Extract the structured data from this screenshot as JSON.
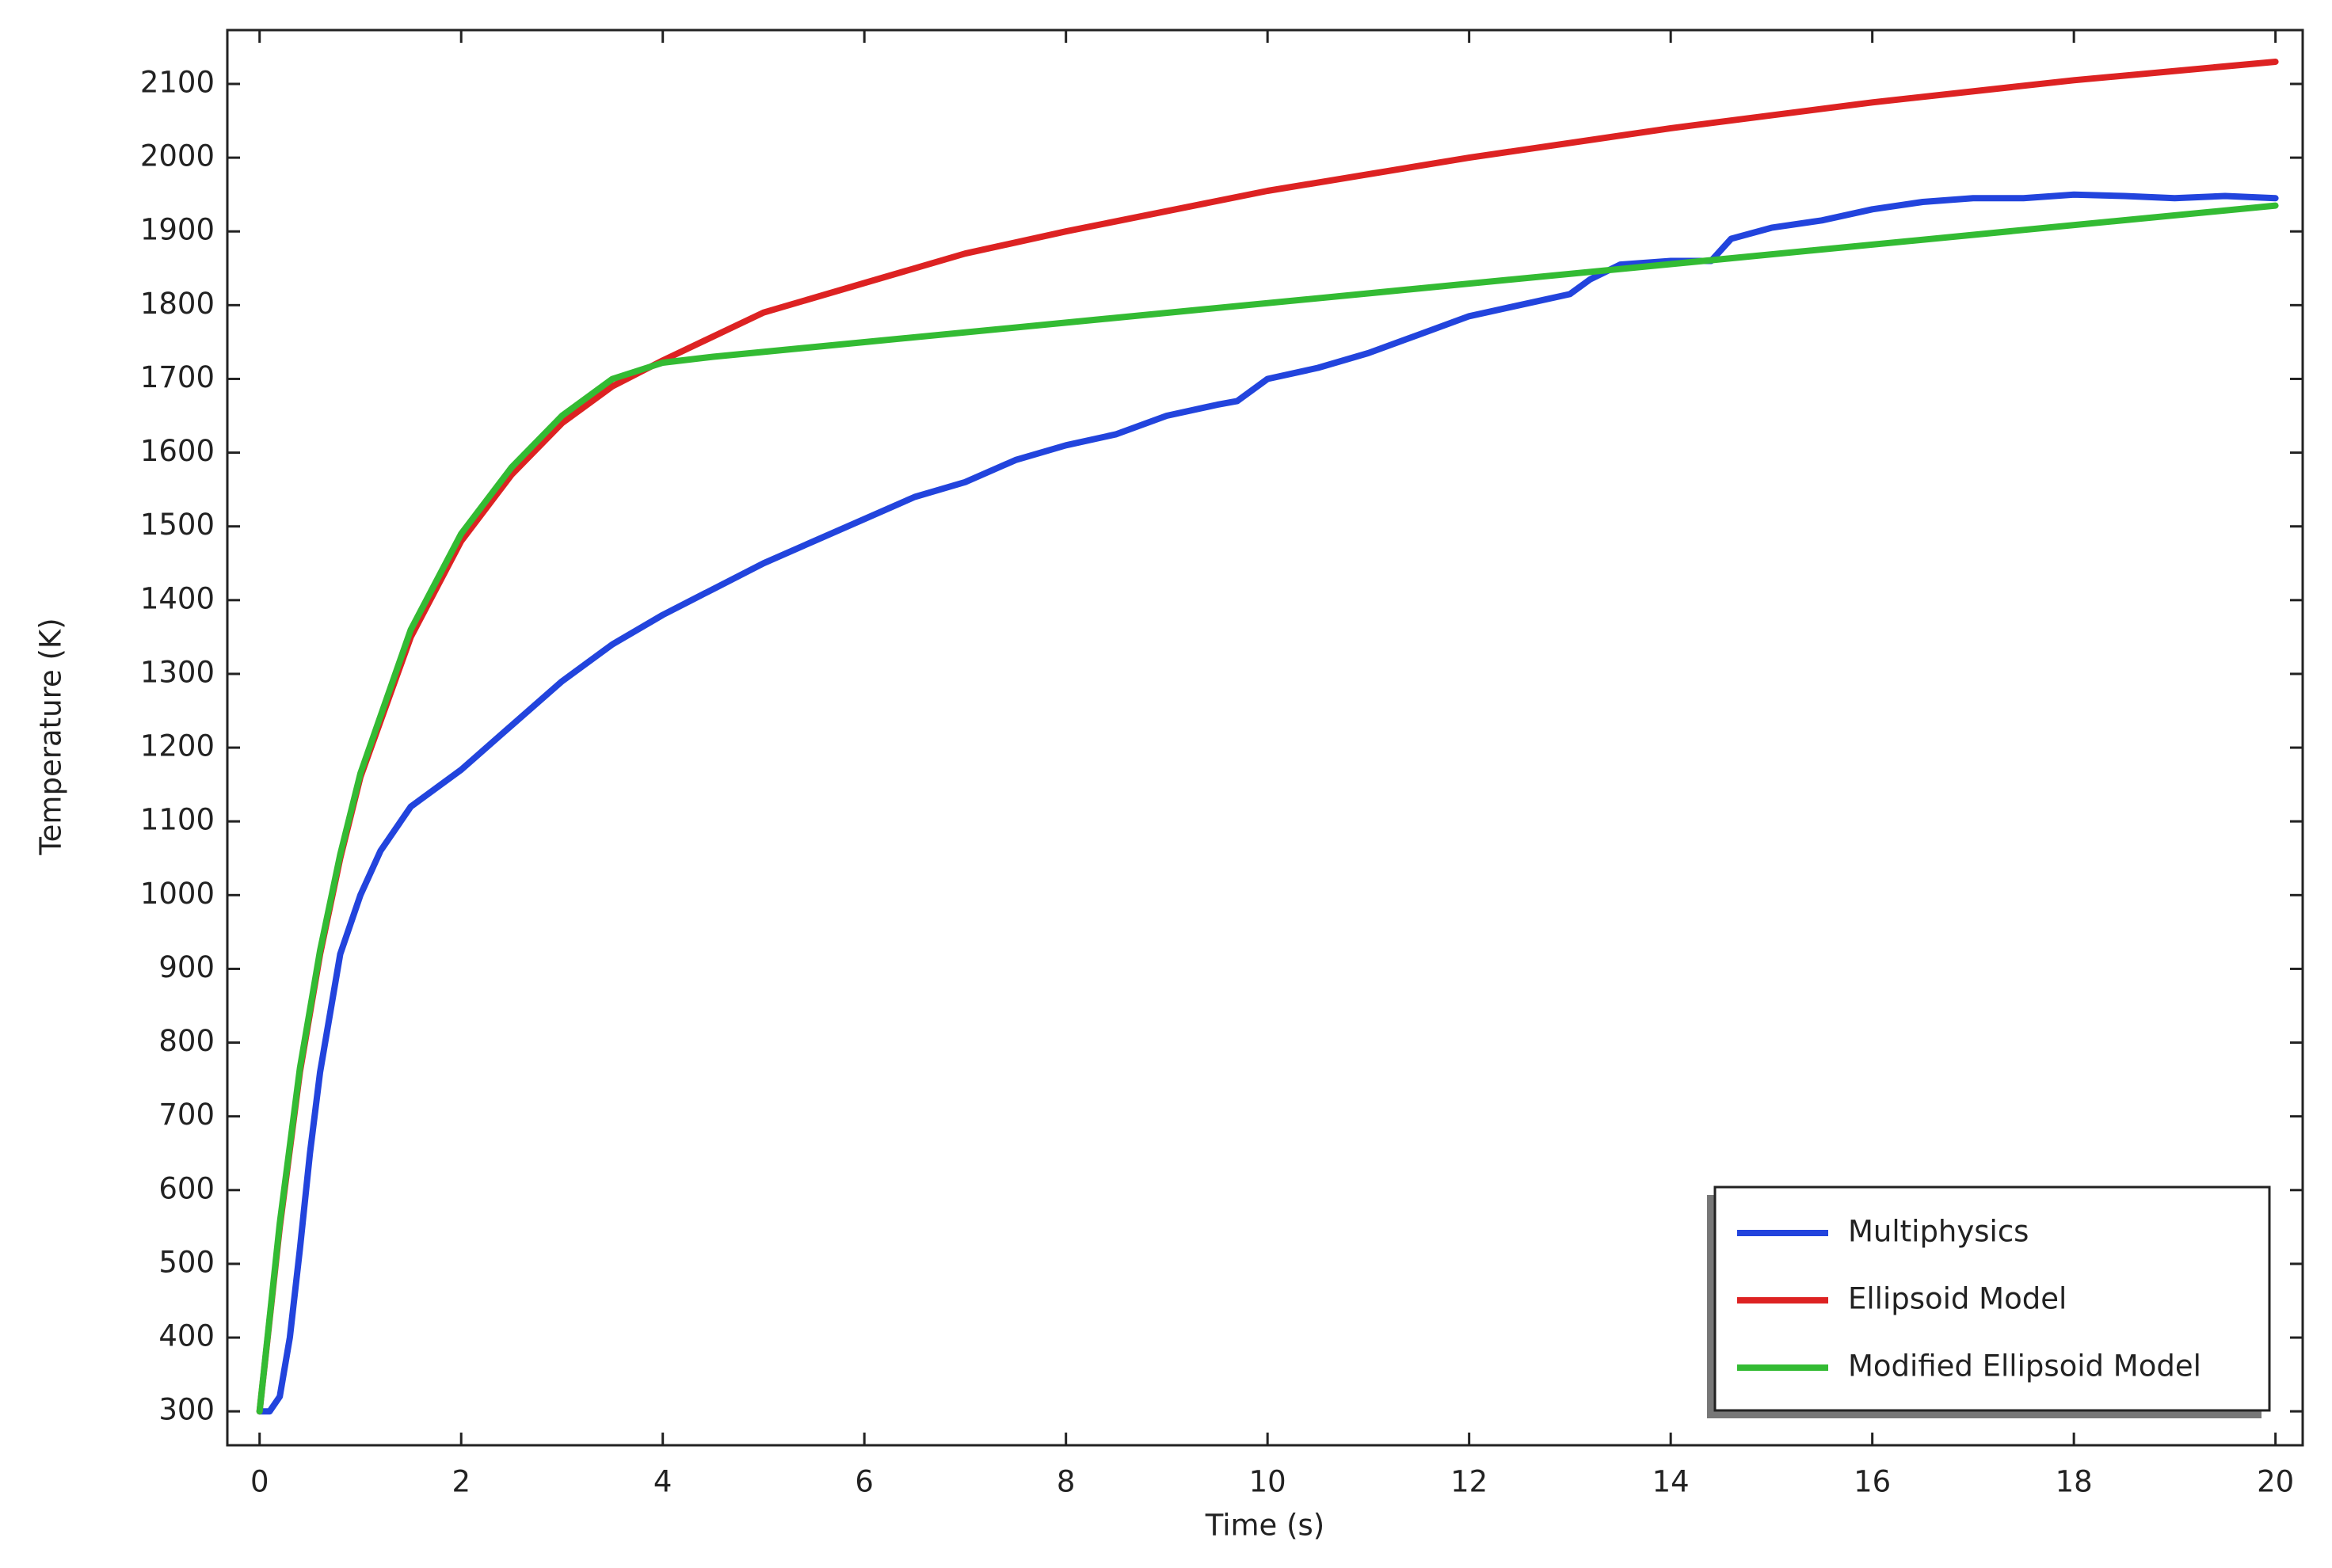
{
  "chart_data": {
    "type": "line",
    "x_label": "Time (s)",
    "y_label": "Temperature (K)",
    "xlim": [
      -0.32,
      20.27
    ],
    "ylim": [
      254,
      2173
    ],
    "xticks": [
      0,
      2,
      4,
      6,
      8,
      10,
      12,
      14,
      16,
      18,
      20
    ],
    "yticks": [
      300,
      400,
      500,
      600,
      700,
      800,
      900,
      1000,
      1100,
      1200,
      1300,
      1400,
      1500,
      1600,
      1700,
      1800,
      1900,
      2000,
      2100
    ],
    "legend": "lower right",
    "series": [
      {
        "name": "Multiphysics",
        "color": "#2244dd",
        "x": [
          0,
          0.1,
          0.2,
          0.3,
          0.4,
          0.5,
          0.6,
          0.8,
          1,
          1.2,
          1.5,
          2,
          2.5,
          3,
          3.5,
          4,
          4.5,
          5,
          5.5,
          6,
          6.5,
          7,
          7.5,
          8,
          8.5,
          9,
          9.5,
          9.7,
          10,
          10.5,
          11,
          11.5,
          12,
          12.5,
          13,
          13.2,
          13.5,
          14,
          14.4,
          14.6,
          15,
          15.5,
          16,
          16.5,
          17,
          17.5,
          18,
          18.5,
          19,
          19.5,
          20
        ],
        "values": [
          300,
          300,
          320,
          400,
          520,
          650,
          760,
          920,
          1000,
          1060,
          1120,
          1170,
          1230,
          1290,
          1340,
          1380,
          1415,
          1450,
          1480,
          1510,
          1540,
          1560,
          1590,
          1610,
          1625,
          1650,
          1665,
          1670,
          1700,
          1715,
          1735,
          1760,
          1785,
          1800,
          1815,
          1835,
          1855,
          1860,
          1860,
          1890,
          1905,
          1915,
          1930,
          1940,
          1945,
          1945,
          1950,
          1948,
          1945,
          1948,
          1945
        ]
      },
      {
        "name": "Ellipsoid Model",
        "color": "#dd2222",
        "x": [
          0,
          0.2,
          0.4,
          0.6,
          0.8,
          1,
          1.5,
          2,
          2.5,
          3,
          3.5,
          4,
          5,
          6,
          7,
          8,
          10,
          12,
          14,
          16,
          18,
          20
        ],
        "values": [
          300,
          550,
          760,
          920,
          1050,
          1160,
          1350,
          1480,
          1570,
          1640,
          1690,
          1725,
          1790,
          1830,
          1870,
          1900,
          1955,
          2000,
          2040,
          2075,
          2105,
          2130
        ]
      },
      {
        "name": "Modified Ellipsoid Model",
        "color": "#33bb33",
        "x": [
          0,
          0.2,
          0.4,
          0.6,
          0.8,
          1,
          1.5,
          2,
          2.5,
          3,
          3.5,
          4,
          4.5,
          20
        ],
        "values": [
          300,
          555,
          765,
          925,
          1055,
          1165,
          1360,
          1490,
          1580,
          1650,
          1700,
          1722,
          1730,
          1935
        ]
      }
    ]
  }
}
